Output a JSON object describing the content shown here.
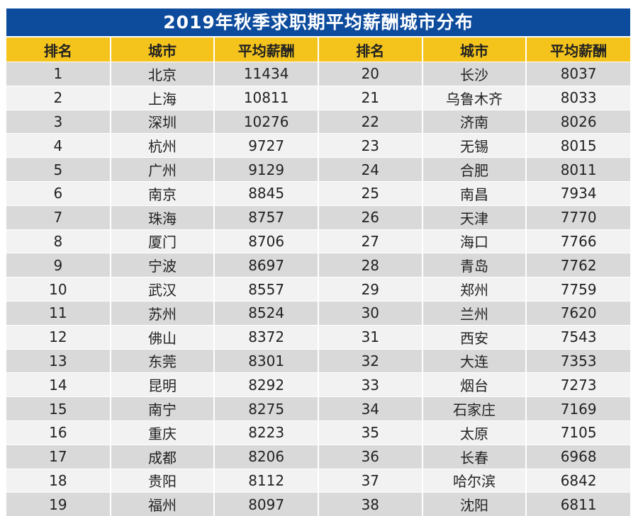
{
  "title": "2019年秋季求职期平均薪酬城市分布",
  "headers": [
    "排名",
    "城市",
    "平均薪酬",
    "排名",
    "城市",
    "平均薪酬"
  ],
  "colors": {
    "title_bg": "#0d4b9c",
    "header_bg": "#f4c41c",
    "row_dark": "#d9d9d9",
    "row_light": "#f2f2f2"
  },
  "rows": [
    [
      [
        "1",
        "北京",
        "11434"
      ],
      [
        "20",
        "长沙",
        "8037"
      ]
    ],
    [
      [
        "2",
        "上海",
        "10811"
      ],
      [
        "21",
        "乌鲁木齐",
        "8033"
      ]
    ],
    [
      [
        "3",
        "深圳",
        "10276"
      ],
      [
        "22",
        "济南",
        "8026"
      ]
    ],
    [
      [
        "4",
        "杭州",
        "9727"
      ],
      [
        "23",
        "无锡",
        "8015"
      ]
    ],
    [
      [
        "5",
        "广州",
        "9129"
      ],
      [
        "24",
        "合肥",
        "8011"
      ]
    ],
    [
      [
        "6",
        "南京",
        "8845"
      ],
      [
        "25",
        "南昌",
        "7934"
      ]
    ],
    [
      [
        "7",
        "珠海",
        "8757"
      ],
      [
        "26",
        "天津",
        "7770"
      ]
    ],
    [
      [
        "8",
        "厦门",
        "8706"
      ],
      [
        "27",
        "海口",
        "7766"
      ]
    ],
    [
      [
        "9",
        "宁波",
        "8697"
      ],
      [
        "28",
        "青岛",
        "7762"
      ]
    ],
    [
      [
        "10",
        "武汉",
        "8557"
      ],
      [
        "29",
        "郑州",
        "7759"
      ]
    ],
    [
      [
        "11",
        "苏州",
        "8524"
      ],
      [
        "30",
        "兰州",
        "7620"
      ]
    ],
    [
      [
        "12",
        "佛山",
        "8372"
      ],
      [
        "31",
        "西安",
        "7543"
      ]
    ],
    [
      [
        "13",
        "东莞",
        "8301"
      ],
      [
        "32",
        "大连",
        "7353"
      ]
    ],
    [
      [
        "14",
        "昆明",
        "8292"
      ],
      [
        "33",
        "烟台",
        "7273"
      ]
    ],
    [
      [
        "15",
        "南宁",
        "8275"
      ],
      [
        "34",
        "石家庄",
        "7169"
      ]
    ],
    [
      [
        "16",
        "重庆",
        "8223"
      ],
      [
        "35",
        "太原",
        "7105"
      ]
    ],
    [
      [
        "17",
        "成都",
        "8206"
      ],
      [
        "36",
        "长春",
        "6968"
      ]
    ],
    [
      [
        "18",
        "贵阳",
        "8112"
      ],
      [
        "37",
        "哈尔滨",
        "6842"
      ]
    ],
    [
      [
        "19",
        "福州",
        "8097"
      ],
      [
        "38",
        "沈阳",
        "6811"
      ]
    ]
  ]
}
